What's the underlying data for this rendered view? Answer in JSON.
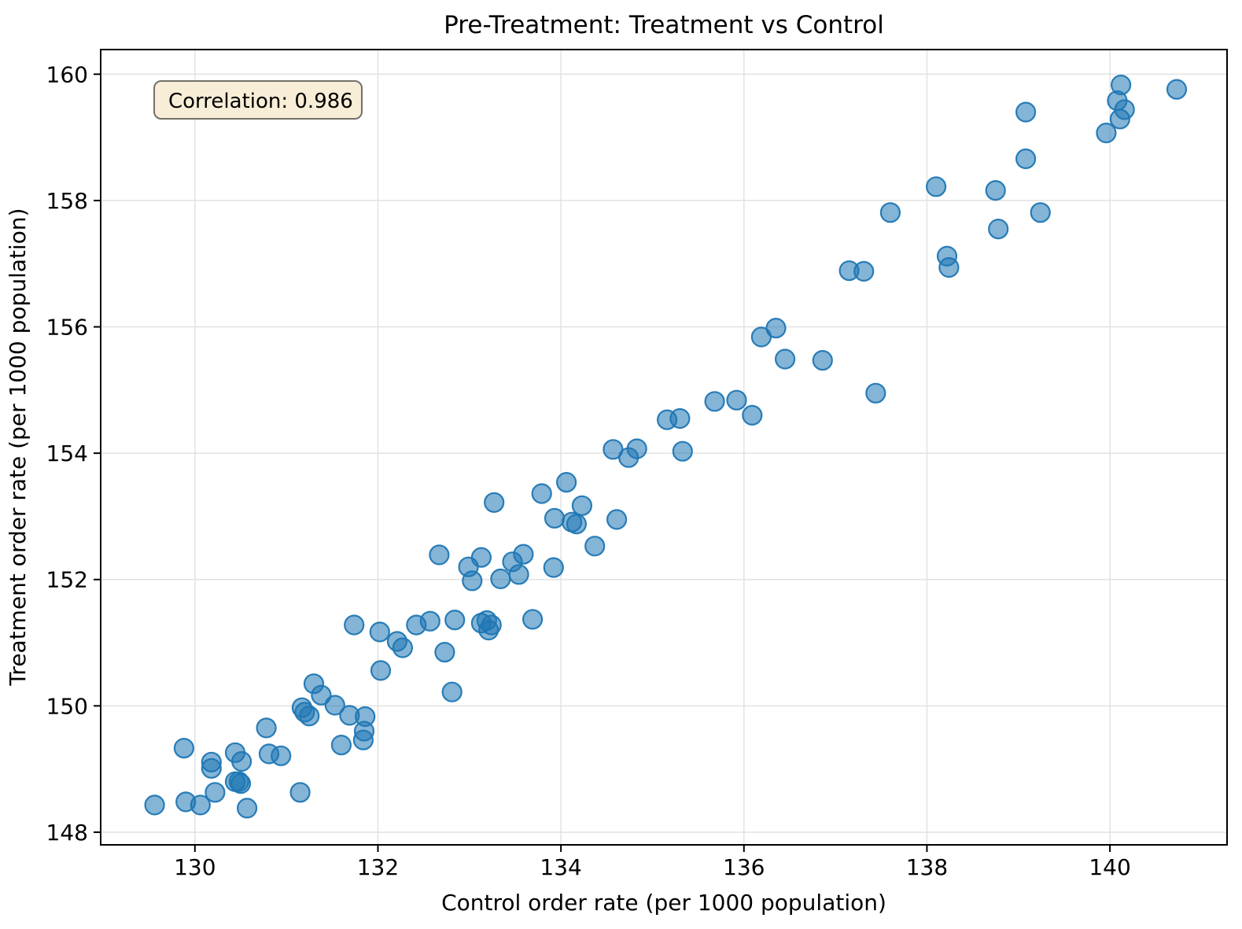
{
  "figure": {
    "background": "#ffffff"
  },
  "chart_data": {
    "type": "scatter",
    "title": "Pre-Treatment: Treatment vs Control",
    "xlabel": "Control order rate (per 1000 population)",
    "ylabel": "Treatment order rate (per 1000 population)",
    "annotation": {
      "text": "Correlation: 0.986",
      "bg": "#f8edd6",
      "border": "#757068"
    },
    "x_ticks": [
      130,
      132,
      134,
      136,
      138,
      140
    ],
    "y_ticks": [
      148,
      150,
      152,
      154,
      156,
      158,
      160
    ],
    "xlim": [
      128.97,
      141.28
    ],
    "ylim": [
      147.8,
      160.39
    ],
    "grid": true,
    "legend_position": "none",
    "marker": {
      "color": "#1f77b4",
      "alpha": 0.55,
      "edge_alpha": 0.95,
      "radius": 12
    },
    "points": [
      [
        129.56,
        148.43
      ],
      [
        129.88,
        149.33
      ],
      [
        129.9,
        148.48
      ],
      [
        130.06,
        148.43
      ],
      [
        130.18,
        149.11
      ],
      [
        130.18,
        149.01
      ],
      [
        130.22,
        148.63
      ],
      [
        130.44,
        149.26
      ],
      [
        130.51,
        149.12
      ],
      [
        130.44,
        148.8
      ],
      [
        130.48,
        148.8
      ],
      [
        130.5,
        148.77
      ],
      [
        130.57,
        148.38
      ],
      [
        130.78,
        149.65
      ],
      [
        130.81,
        149.24
      ],
      [
        130.94,
        149.21
      ],
      [
        131.15,
        148.63
      ],
      [
        131.3,
        150.35
      ],
      [
        131.38,
        150.17
      ],
      [
        131.53,
        150.01
      ],
      [
        131.17,
        149.97
      ],
      [
        131.2,
        149.9
      ],
      [
        131.25,
        149.84
      ],
      [
        131.69,
        149.85
      ],
      [
        131.86,
        149.83
      ],
      [
        131.85,
        149.6
      ],
      [
        131.84,
        149.46
      ],
      [
        131.6,
        149.38
      ],
      [
        131.74,
        151.28
      ],
      [
        132.02,
        151.17
      ],
      [
        132.21,
        151.02
      ],
      [
        132.27,
        150.92
      ],
      [
        132.73,
        150.85
      ],
      [
        132.81,
        150.22
      ],
      [
        132.03,
        150.56
      ],
      [
        132.42,
        151.28
      ],
      [
        132.57,
        151.34
      ],
      [
        132.84,
        151.36
      ],
      [
        133.13,
        151.31
      ],
      [
        133.19,
        151.35
      ],
      [
        133.24,
        151.28
      ],
      [
        133.21,
        151.2
      ],
      [
        133.69,
        151.37
      ],
      [
        132.67,
        152.39
      ],
      [
        132.99,
        152.2
      ],
      [
        133.13,
        152.35
      ],
      [
        133.59,
        152.4
      ],
      [
        133.03,
        151.98
      ],
      [
        133.34,
        152.01
      ],
      [
        133.47,
        152.28
      ],
      [
        133.54,
        152.08
      ],
      [
        133.92,
        152.19
      ],
      [
        133.27,
        153.22
      ],
      [
        133.79,
        153.36
      ],
      [
        134.06,
        153.54
      ],
      [
        134.23,
        153.17
      ],
      [
        133.93,
        152.97
      ],
      [
        134.12,
        152.91
      ],
      [
        134.17,
        152.88
      ],
      [
        134.61,
        152.95
      ],
      [
        134.37,
        152.53
      ],
      [
        134.57,
        154.06
      ],
      [
        134.83,
        154.07
      ],
      [
        134.74,
        153.93
      ],
      [
        135.16,
        154.53
      ],
      [
        135.3,
        154.55
      ],
      [
        135.33,
        154.03
      ],
      [
        135.68,
        154.82
      ],
      [
        135.92,
        154.84
      ],
      [
        136.09,
        154.6
      ],
      [
        136.19,
        155.84
      ],
      [
        136.35,
        155.98
      ],
      [
        136.45,
        155.49
      ],
      [
        136.86,
        155.47
      ],
      [
        137.44,
        154.95
      ],
      [
        137.15,
        156.89
      ],
      [
        137.31,
        156.88
      ],
      [
        138.22,
        157.12
      ],
      [
        138.24,
        156.94
      ],
      [
        137.6,
        157.81
      ],
      [
        138.1,
        158.22
      ],
      [
        138.75,
        158.16
      ],
      [
        138.78,
        157.55
      ],
      [
        139.08,
        159.4
      ],
      [
        139.08,
        158.66
      ],
      [
        139.24,
        157.81
      ],
      [
        139.96,
        159.07
      ],
      [
        140.08,
        159.58
      ],
      [
        140.11,
        159.29
      ],
      [
        140.12,
        159.83
      ],
      [
        140.16,
        159.44
      ],
      [
        140.73,
        159.76
      ]
    ]
  }
}
